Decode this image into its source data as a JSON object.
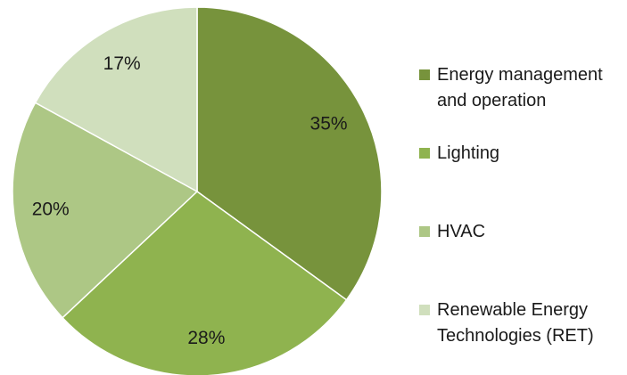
{
  "chart_data": {
    "type": "pie",
    "categories": [
      "Energy management and operation",
      "Lighting",
      "HVAC",
      "Renewable Energy Technologies (RET)"
    ],
    "values": [
      35,
      28,
      20,
      17
    ],
    "value_labels": [
      "35%",
      "28%",
      "20%",
      "17%"
    ],
    "colors": [
      "#77933c",
      "#8fb34f",
      "#adc785",
      "#d0dfbd"
    ],
    "legend": "right"
  }
}
